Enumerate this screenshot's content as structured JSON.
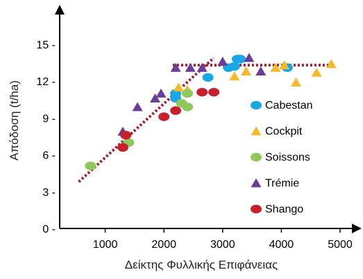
{
  "chart_data": {
    "type": "scatter",
    "xlabel": "Δείκτης Φυλλικής Επιφάνειας",
    "ylabel": "Απόδοση (t/ha)",
    "xlim": [
      0,
      5000
    ],
    "ylim": [
      0,
      15
    ],
    "x_ticks": [
      "1000",
      "2000",
      "3000",
      "4000",
      "5000"
    ],
    "y_ticks": [
      "0 -",
      "3 -",
      "6 -",
      "9 -",
      "12 -",
      "15 -"
    ],
    "grid": false,
    "legend_position": "right",
    "series": [
      {
        "name": "Cabestan",
        "marker": "circle",
        "color": "#1aa7e6",
        "points": [
          [
            2200,
            11.0
          ],
          [
            2200,
            10.6
          ],
          [
            2750,
            12.3
          ],
          [
            3100,
            13.1
          ],
          [
            3200,
            13.2
          ],
          [
            3250,
            13.8
          ],
          [
            3300,
            13.8
          ],
          [
            4100,
            13.1
          ]
        ]
      },
      {
        "name": "Cockpit",
        "marker": "triangle",
        "color": "#f5b92e",
        "points": [
          [
            2250,
            11.5
          ],
          [
            2400,
            11.3
          ],
          [
            3200,
            12.4
          ],
          [
            3400,
            12.8
          ],
          [
            3900,
            13.1
          ],
          [
            4050,
            13.3
          ],
          [
            4250,
            11.9
          ],
          [
            4600,
            12.7
          ],
          [
            4850,
            13.4
          ]
        ]
      },
      {
        "name": "Soissons",
        "marker": "circle",
        "color": "#8dc85a",
        "points": [
          [
            750,
            5.1
          ],
          [
            1400,
            7.0
          ],
          [
            2300,
            10.2
          ],
          [
            2400,
            11.0
          ],
          [
            2400,
            9.9
          ]
        ]
      },
      {
        "name": "Trémie",
        "marker": "triangle",
        "color": "#6a3d9a",
        "points": [
          [
            1300,
            7.9
          ],
          [
            1550,
            9.9
          ],
          [
            1850,
            10.6
          ],
          [
            1950,
            11.0
          ],
          [
            2200,
            13.1
          ],
          [
            2450,
            13.1
          ],
          [
            2650,
            13.1
          ],
          [
            3000,
            13.6
          ],
          [
            3450,
            13.9
          ],
          [
            3650,
            12.8
          ]
        ]
      },
      {
        "name": "Shango",
        "marker": "circle",
        "color": "#c8202a",
        "points": [
          [
            1300,
            6.6
          ],
          [
            1350,
            7.6
          ],
          [
            2000,
            9.1
          ],
          [
            2200,
            9.6
          ],
          [
            2650,
            11.1
          ],
          [
            2850,
            11.1
          ]
        ]
      }
    ],
    "trend_lines": [
      {
        "style": "dotted",
        "color": "#a51e2d",
        "points": [
          [
            550,
            3.8
          ],
          [
            2850,
            13.9
          ]
        ]
      },
      {
        "style": "dotted",
        "color": "#a51e2d",
        "points": [
          [
            2150,
            13.3
          ],
          [
            4850,
            13.3
          ]
        ]
      }
    ]
  }
}
